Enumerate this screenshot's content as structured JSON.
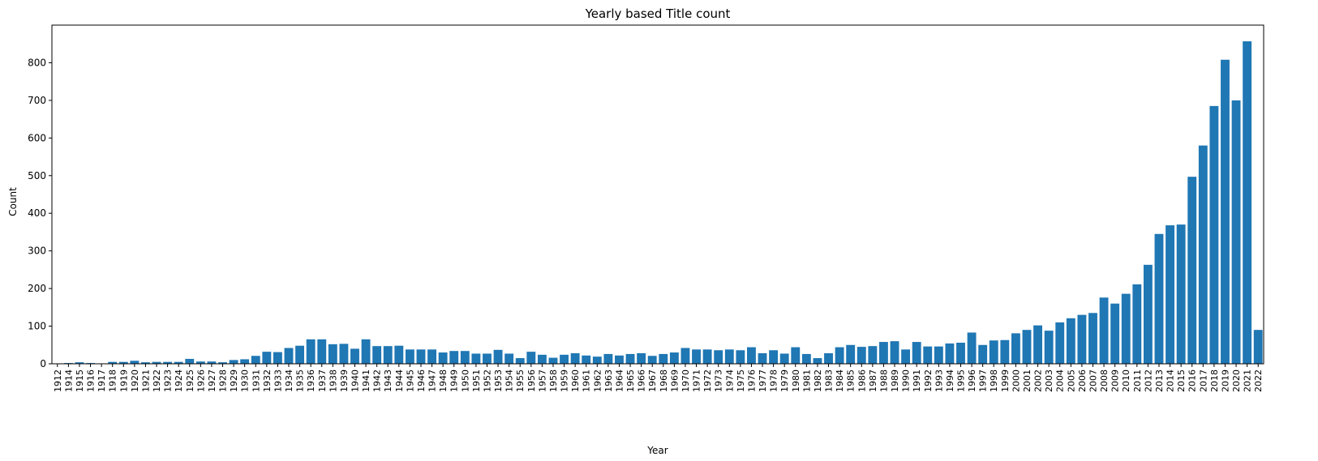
{
  "chart_data": {
    "type": "bar",
    "title": "Yearly based Title count",
    "xlabel": "Year",
    "ylabel": "Count",
    "ylim": [
      0,
      900
    ],
    "yticks": [
      0,
      100,
      200,
      300,
      400,
      500,
      600,
      700,
      800
    ],
    "bar_color": "#1f77b4",
    "grid": false,
    "categories": [
      "1912",
      "1914",
      "1915",
      "1916",
      "1917",
      "1918",
      "1919",
      "1920",
      "1921",
      "1922",
      "1923",
      "1924",
      "1925",
      "1926",
      "1927",
      "1928",
      "1929",
      "1930",
      "1931",
      "1932",
      "1933",
      "1934",
      "1935",
      "1936",
      "1937",
      "1938",
      "1939",
      "1940",
      "1941",
      "1942",
      "1943",
      "1944",
      "1945",
      "1946",
      "1947",
      "1948",
      "1949",
      "1950",
      "1951",
      "1952",
      "1953",
      "1954",
      "1955",
      "1956",
      "1957",
      "1958",
      "1959",
      "1960",
      "1961",
      "1962",
      "1963",
      "1964",
      "1965",
      "1966",
      "1967",
      "1968",
      "1969",
      "1970",
      "1971",
      "1972",
      "1973",
      "1974",
      "1975",
      "1976",
      "1977",
      "1978",
      "1979",
      "1980",
      "1981",
      "1982",
      "1983",
      "1984",
      "1985",
      "1986",
      "1987",
      "1988",
      "1989",
      "1990",
      "1991",
      "1992",
      "1993",
      "1994",
      "1995",
      "1996",
      "1997",
      "1998",
      "1999",
      "2000",
      "2001",
      "2002",
      "2003",
      "2004",
      "2005",
      "2006",
      "2007",
      "2008",
      "2009",
      "2010",
      "2011",
      "2012",
      "2013",
      "2014",
      "2015",
      "2016",
      "2017",
      "2018",
      "2019",
      "2020",
      "2021",
      "2022"
    ],
    "values": [
      1,
      2,
      4,
      2,
      1,
      5,
      5,
      8,
      4,
      5,
      5,
      5,
      13,
      6,
      6,
      4,
      10,
      12,
      21,
      32,
      31,
      42,
      48,
      65,
      65,
      52,
      53,
      40,
      65,
      47,
      47,
      48,
      38,
      38,
      38,
      30,
      34,
      34,
      27,
      27,
      37,
      27,
      15,
      32,
      24,
      16,
      24,
      28,
      22,
      19,
      26,
      22,
      26,
      28,
      21,
      26,
      30,
      42,
      38,
      38,
      36,
      38,
      36,
      44,
      28,
      36,
      27,
      44,
      26,
      15,
      28,
      44,
      50,
      45,
      47,
      58,
      60,
      38,
      58,
      46,
      46,
      54,
      56,
      83,
      50,
      62,
      63,
      81,
      90,
      102,
      88,
      110,
      121,
      130,
      135,
      176,
      160,
      186,
      211,
      263,
      345,
      368,
      370,
      497,
      580,
      685,
      808,
      700,
      857,
      90
    ]
  }
}
